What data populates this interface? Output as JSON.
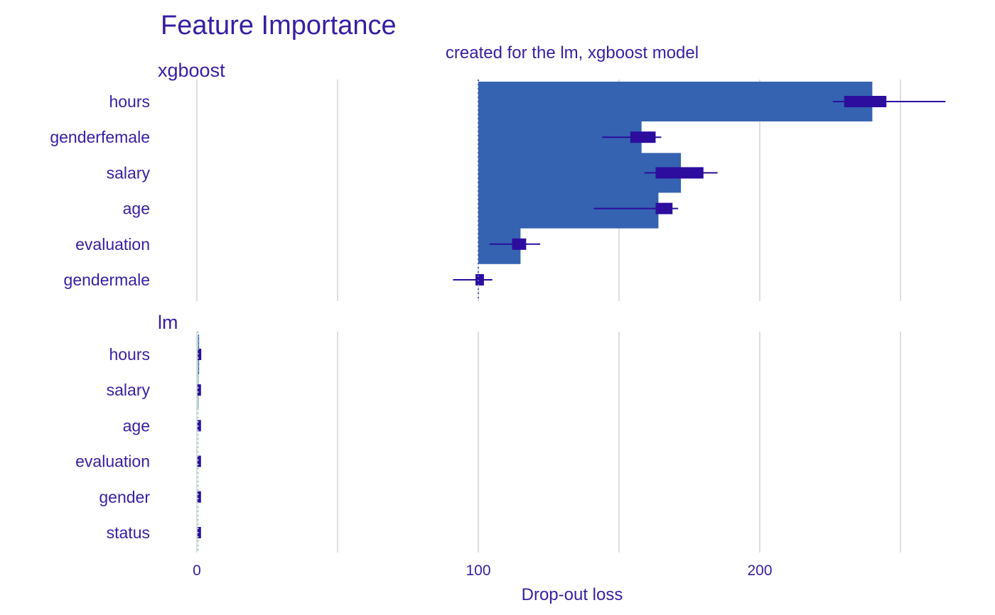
{
  "colors": {
    "text": "#371ea3",
    "bar": "#3563b1",
    "box": "#2c0d9e",
    "grid": "#dddddd",
    "baseline_xgboost": "#4a5fb8",
    "baseline_lm": "#8fd6b5"
  },
  "chart_data": {
    "type": "bar",
    "title": "Feature Importance",
    "subtitle": "created for the lm, xgboost model",
    "xlabel": "Drop-out loss",
    "xlim": [
      0,
      275
    ],
    "x_ticks": [
      0,
      100,
      200
    ],
    "x_tick_labels": [
      "0",
      "100",
      "200"
    ],
    "grid_lines": [
      0,
      50,
      100,
      150,
      200,
      250
    ],
    "panels": [
      {
        "name": "xgboost",
        "baseline": 100,
        "bars": [
          {
            "variable": "hours",
            "value": 240,
            "whisker_low": 226,
            "whisker_high": 266,
            "box_low": 230,
            "box_high": 245
          },
          {
            "variable": "genderfemale",
            "value": 158,
            "whisker_low": 144,
            "whisker_high": 165,
            "box_low": 154,
            "box_high": 163
          },
          {
            "variable": "salary",
            "value": 172,
            "whisker_low": 159,
            "whisker_high": 185,
            "box_low": 163,
            "box_high": 180
          },
          {
            "variable": "age",
            "value": 164,
            "whisker_low": 141,
            "whisker_high": 171,
            "box_low": 163,
            "box_high": 169
          },
          {
            "variable": "evaluation",
            "value": 115,
            "whisker_low": 104,
            "whisker_high": 122,
            "box_low": 112,
            "box_high": 117
          },
          {
            "variable": "gendermale",
            "value": 100,
            "whisker_low": 91,
            "whisker_high": 105,
            "box_low": 99,
            "box_high": 102
          }
        ]
      },
      {
        "name": "lm",
        "baseline": 0.4,
        "bars": [
          {
            "variable": "hours",
            "value": 0.8,
            "whisker_low": 0.3,
            "whisker_high": 1.0,
            "box_low": 0.3,
            "box_high": 1.0
          },
          {
            "variable": "salary",
            "value": 0.6,
            "whisker_low": 0.2,
            "whisker_high": 0.9,
            "box_low": 0.2,
            "box_high": 0.9
          },
          {
            "variable": "age",
            "value": 0.5,
            "whisker_low": 0.2,
            "whisker_high": 0.9,
            "box_low": 0.2,
            "box_high": 0.9
          },
          {
            "variable": "evaluation",
            "value": 0.5,
            "whisker_low": 0.2,
            "whisker_high": 0.9,
            "box_low": 0.2,
            "box_high": 0.9
          },
          {
            "variable": "gender",
            "value": 0.5,
            "whisker_low": 0.2,
            "whisker_high": 0.9,
            "box_low": 0.2,
            "box_high": 0.9
          },
          {
            "variable": "status",
            "value": 0.5,
            "whisker_low": 0.2,
            "whisker_high": 0.9,
            "box_low": 0.2,
            "box_high": 0.9
          }
        ]
      }
    ]
  }
}
